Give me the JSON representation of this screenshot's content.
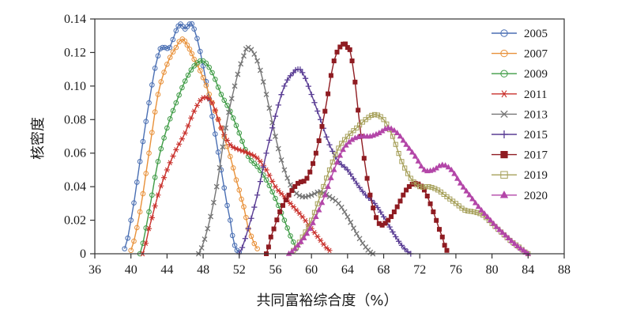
{
  "chart_data": {
    "type": "line",
    "title": "",
    "xlabel": "共同富裕综合度（%）",
    "ylabel": "核密度",
    "xlim": [
      36,
      88
    ],
    "ylim": [
      0,
      0.14
    ],
    "xticks": [
      36,
      40,
      44,
      48,
      52,
      56,
      60,
      64,
      68,
      72,
      76,
      80,
      84,
      88
    ],
    "yticks": [
      0,
      0.02,
      0.04,
      0.06,
      0.08,
      0.1,
      0.12,
      0.14
    ],
    "xtick_labels": [
      "36",
      "40",
      "44",
      "48",
      "52",
      "56",
      "60",
      "64",
      "68",
      "72",
      "76",
      "80",
      "84",
      "88"
    ],
    "ytick_labels": [
      "0",
      "0.02",
      "0.04",
      "0.06",
      "0.08",
      "0.10",
      "0.12",
      "0.14"
    ],
    "grid": false,
    "legend_position": "top-right",
    "series": [
      {
        "name": "2005",
        "color": "#4a6fb3",
        "marker": "circle",
        "points": [
          [
            39.3,
            0.003
          ],
          [
            40.0,
            0.02
          ],
          [
            41.0,
            0.055
          ],
          [
            42.0,
            0.09
          ],
          [
            43.0,
            0.118
          ],
          [
            43.5,
            0.123
          ],
          [
            44.3,
            0.123
          ],
          [
            45.0,
            0.133
          ],
          [
            45.5,
            0.137
          ],
          [
            46.0,
            0.134
          ],
          [
            46.5,
            0.137
          ],
          [
            47.0,
            0.134
          ],
          [
            48.0,
            0.112
          ],
          [
            49.0,
            0.082
          ],
          [
            50.0,
            0.05
          ],
          [
            51.0,
            0.02
          ],
          [
            51.5,
            0.005
          ],
          [
            52.0,
            0.001
          ]
        ]
      },
      {
        "name": "2007",
        "color": "#e8913a",
        "marker": "circle",
        "points": [
          [
            40.0,
            0.002
          ],
          [
            41.0,
            0.025
          ],
          [
            42.0,
            0.06
          ],
          [
            43.0,
            0.095
          ],
          [
            44.0,
            0.113
          ],
          [
            45.0,
            0.123
          ],
          [
            45.7,
            0.128
          ],
          [
            46.5,
            0.122
          ],
          [
            47.0,
            0.116
          ],
          [
            48.0,
            0.105
          ],
          [
            49.0,
            0.09
          ],
          [
            50.0,
            0.075
          ],
          [
            51.0,
            0.058
          ],
          [
            52.0,
            0.038
          ],
          [
            52.5,
            0.028
          ],
          [
            53.0,
            0.015
          ],
          [
            54.0,
            0.003
          ]
        ]
      },
      {
        "name": "2009",
        "color": "#3e9b45",
        "marker": "circle",
        "points": [
          [
            41.0,
            0.0
          ],
          [
            42.0,
            0.025
          ],
          [
            43.0,
            0.055
          ],
          [
            44.0,
            0.075
          ],
          [
            45.0,
            0.09
          ],
          [
            46.0,
            0.103
          ],
          [
            47.0,
            0.112
          ],
          [
            48.0,
            0.115
          ],
          [
            49.0,
            0.108
          ],
          [
            50.0,
            0.095
          ],
          [
            51.0,
            0.085
          ],
          [
            52.0,
            0.072
          ],
          [
            53.0,
            0.058
          ],
          [
            54.0,
            0.052
          ],
          [
            55.0,
            0.044
          ],
          [
            56.0,
            0.033
          ],
          [
            57.0,
            0.02
          ],
          [
            58.0,
            0.007
          ],
          [
            58.3,
            0.003
          ]
        ]
      },
      {
        "name": "2011",
        "color": "#c9312c",
        "marker": "asterisk",
        "points": [
          [
            41.3,
            0.0
          ],
          [
            42.0,
            0.015
          ],
          [
            43.0,
            0.035
          ],
          [
            44.0,
            0.05
          ],
          [
            45.0,
            0.062
          ],
          [
            46.0,
            0.072
          ],
          [
            47.0,
            0.085
          ],
          [
            48.0,
            0.093
          ],
          [
            49.0,
            0.09
          ],
          [
            50.0,
            0.075
          ],
          [
            51.0,
            0.065
          ],
          [
            52.0,
            0.062
          ],
          [
            53.0,
            0.06
          ],
          [
            54.0,
            0.057
          ],
          [
            55.0,
            0.05
          ],
          [
            56.0,
            0.04
          ],
          [
            57.0,
            0.034
          ],
          [
            58.0,
            0.028
          ],
          [
            59.0,
            0.022
          ],
          [
            60.0,
            0.015
          ],
          [
            61.0,
            0.008
          ],
          [
            62.0,
            0.002
          ]
        ]
      },
      {
        "name": "2013",
        "color": "#757575",
        "marker": "x",
        "points": [
          [
            47.5,
            0.0
          ],
          [
            48.5,
            0.015
          ],
          [
            49.5,
            0.04
          ],
          [
            50.5,
            0.075
          ],
          [
            51.5,
            0.1
          ],
          [
            52.5,
            0.118
          ],
          [
            53.0,
            0.123
          ],
          [
            54.0,
            0.115
          ],
          [
            55.0,
            0.095
          ],
          [
            56.0,
            0.07
          ],
          [
            57.0,
            0.05
          ],
          [
            58.0,
            0.038
          ],
          [
            59.0,
            0.034
          ],
          [
            60.0,
            0.035
          ],
          [
            61.0,
            0.037
          ],
          [
            62.0,
            0.034
          ],
          [
            63.0,
            0.03
          ],
          [
            64.0,
            0.022
          ],
          [
            65.0,
            0.012
          ],
          [
            66.0,
            0.004
          ],
          [
            66.8,
            0.0
          ]
        ]
      },
      {
        "name": "2015",
        "color": "#5a3d94",
        "marker": "plus",
        "points": [
          [
            52.0,
            0.0
          ],
          [
            53.0,
            0.015
          ],
          [
            54.0,
            0.035
          ],
          [
            55.0,
            0.06
          ],
          [
            56.0,
            0.082
          ],
          [
            57.0,
            0.1
          ],
          [
            58.0,
            0.108
          ],
          [
            58.5,
            0.11
          ],
          [
            59.0,
            0.108
          ],
          [
            60.0,
            0.095
          ],
          [
            61.0,
            0.08
          ],
          [
            62.0,
            0.065
          ],
          [
            63.0,
            0.055
          ],
          [
            64.0,
            0.05
          ],
          [
            65.0,
            0.042
          ],
          [
            66.0,
            0.035
          ],
          [
            67.0,
            0.03
          ],
          [
            68.0,
            0.022
          ],
          [
            69.0,
            0.013
          ],
          [
            70.0,
            0.005
          ],
          [
            71.0,
            0.0
          ]
        ]
      },
      {
        "name": "2017",
        "color": "#8f1c22",
        "marker": "square",
        "points": [
          [
            55.0,
            0.0
          ],
          [
            55.5,
            0.01
          ],
          [
            56.5,
            0.025
          ],
          [
            57.5,
            0.035
          ],
          [
            58.5,
            0.042
          ],
          [
            59.5,
            0.045
          ],
          [
            60.5,
            0.06
          ],
          [
            61.5,
            0.085
          ],
          [
            62.5,
            0.115
          ],
          [
            63.5,
            0.125
          ],
          [
            64.0,
            0.123
          ],
          [
            64.5,
            0.115
          ],
          [
            65.5,
            0.07
          ],
          [
            66.5,
            0.035
          ],
          [
            67.5,
            0.018
          ],
          [
            68.5,
            0.02
          ],
          [
            69.5,
            0.028
          ],
          [
            70.5,
            0.038
          ],
          [
            71.5,
            0.042
          ],
          [
            72.5,
            0.038
          ],
          [
            73.5,
            0.025
          ],
          [
            74.5,
            0.01
          ],
          [
            75.0,
            0.002
          ]
        ]
      },
      {
        "name": "2019",
        "color": "#a6a05a",
        "marker": "square",
        "points": [
          [
            58.0,
            0.002
          ],
          [
            59.0,
            0.01
          ],
          [
            60.0,
            0.02
          ],
          [
            61.0,
            0.035
          ],
          [
            62.0,
            0.05
          ],
          [
            63.0,
            0.063
          ],
          [
            64.0,
            0.07
          ],
          [
            65.0,
            0.075
          ],
          [
            66.0,
            0.08
          ],
          [
            67.0,
            0.083
          ],
          [
            68.0,
            0.08
          ],
          [
            69.0,
            0.07
          ],
          [
            70.0,
            0.055
          ],
          [
            71.0,
            0.045
          ],
          [
            72.0,
            0.04
          ],
          [
            73.0,
            0.04
          ],
          [
            74.0,
            0.038
          ],
          [
            75.0,
            0.034
          ],
          [
            76.0,
            0.03
          ],
          [
            77.0,
            0.026
          ],
          [
            78.0,
            0.025
          ],
          [
            79.0,
            0.023
          ],
          [
            80.0,
            0.018
          ],
          [
            81.0,
            0.013
          ],
          [
            82.0,
            0.008
          ],
          [
            83.0,
            0.004
          ],
          [
            84.0,
            0.0
          ]
        ]
      },
      {
        "name": "2020",
        "color": "#b346a8",
        "marker": "triangle",
        "points": [
          [
            57.5,
            0.0
          ],
          [
            58.5,
            0.005
          ],
          [
            59.5,
            0.012
          ],
          [
            60.5,
            0.022
          ],
          [
            61.5,
            0.035
          ],
          [
            62.5,
            0.05
          ],
          [
            63.5,
            0.062
          ],
          [
            64.5,
            0.068
          ],
          [
            65.5,
            0.07
          ],
          [
            66.5,
            0.07
          ],
          [
            67.5,
            0.072
          ],
          [
            68.5,
            0.075
          ],
          [
            69.5,
            0.072
          ],
          [
            70.5,
            0.065
          ],
          [
            71.5,
            0.058
          ],
          [
            72.5,
            0.05
          ],
          [
            73.5,
            0.05
          ],
          [
            74.5,
            0.053
          ],
          [
            75.5,
            0.05
          ],
          [
            76.5,
            0.042
          ],
          [
            77.5,
            0.035
          ],
          [
            78.5,
            0.028
          ],
          [
            79.5,
            0.022
          ],
          [
            80.5,
            0.016
          ],
          [
            81.5,
            0.011
          ],
          [
            82.5,
            0.006
          ],
          [
            83.5,
            0.002
          ],
          [
            84.0,
            0.0
          ]
        ]
      }
    ]
  }
}
